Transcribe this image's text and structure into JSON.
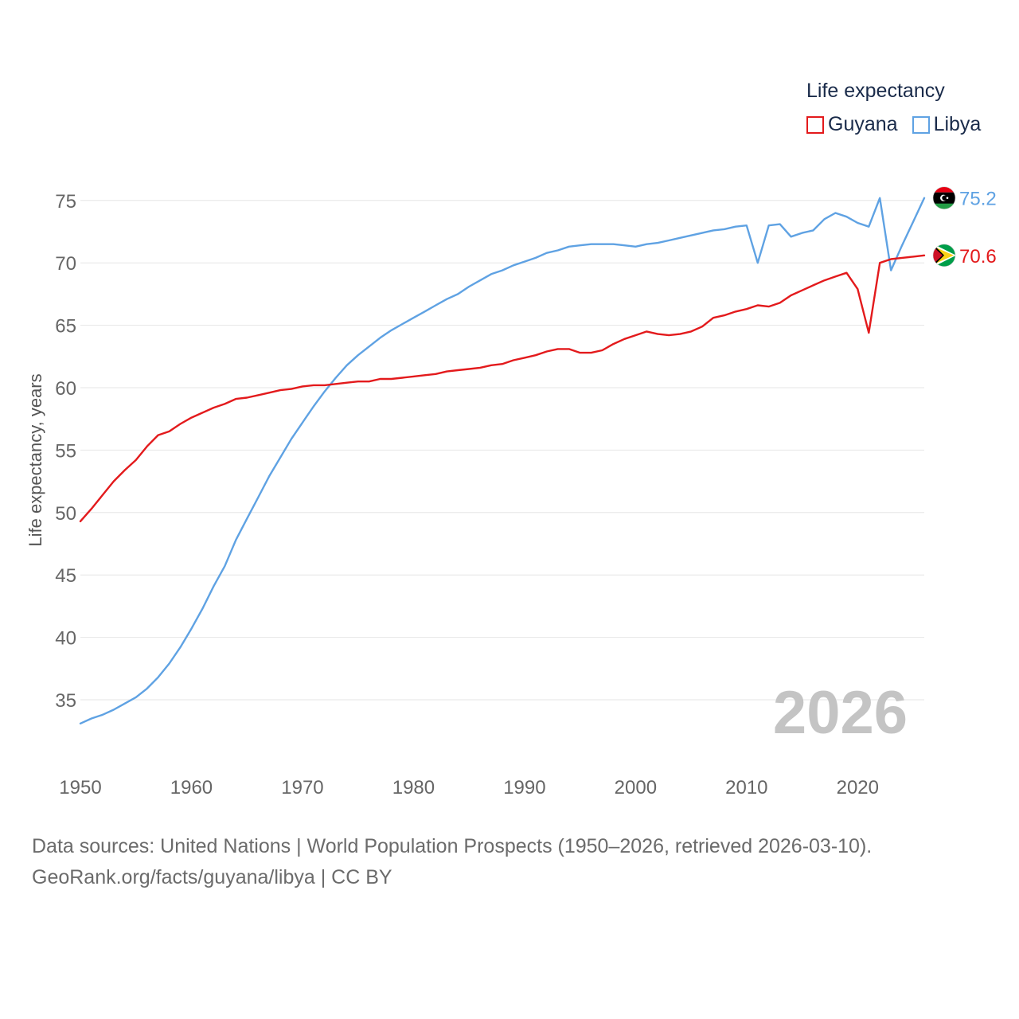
{
  "legend": {
    "title": "Life expectancy"
  },
  "footer": {
    "line1": "Data sources: United Nations | World Population Prospects (1950–2026, retrieved 2026-03-10).",
    "line2": "GeoRank.org/facts/guyana/libya | CC BY"
  },
  "chart_data": {
    "type": "line",
    "title": "Life expectancy",
    "xlabel": "",
    "ylabel": "Life expectancy, years",
    "xlim": [
      1950,
      2026
    ],
    "ylim": [
      31.5,
      76
    ],
    "x_ticks": [
      1950,
      1960,
      1970,
      1980,
      1990,
      2000,
      2010,
      2020
    ],
    "y_ticks": [
      35,
      40,
      45,
      50,
      55,
      60,
      65,
      70,
      75
    ],
    "grid": true,
    "legend_position": "top-right",
    "current_year_label": "2026",
    "x": [
      1950,
      1951,
      1952,
      1953,
      1954,
      1955,
      1956,
      1957,
      1958,
      1959,
      1960,
      1961,
      1962,
      1963,
      1964,
      1965,
      1966,
      1967,
      1968,
      1969,
      1970,
      1971,
      1972,
      1973,
      1974,
      1975,
      1976,
      1977,
      1978,
      1979,
      1980,
      1981,
      1982,
      1983,
      1984,
      1985,
      1986,
      1987,
      1988,
      1989,
      1990,
      1991,
      1992,
      1993,
      1994,
      1995,
      1996,
      1997,
      1998,
      1999,
      2000,
      2001,
      2002,
      2003,
      2004,
      2005,
      2006,
      2007,
      2008,
      2009,
      2010,
      2011,
      2012,
      2013,
      2014,
      2015,
      2016,
      2017,
      2018,
      2019,
      2020,
      2021,
      2022,
      2023,
      2024,
      2025,
      2026
    ],
    "series": [
      {
        "name": "Guyana",
        "color": "#e31a1c",
        "end_label": "70.6",
        "flag": "guyana-flag",
        "values": [
          49.3,
          50.3,
          51.4,
          52.5,
          53.4,
          54.2,
          55.3,
          56.2,
          56.5,
          57.1,
          57.6,
          58.0,
          58.4,
          58.7,
          59.1,
          59.2,
          59.4,
          59.6,
          59.8,
          59.9,
          60.1,
          60.2,
          60.2,
          60.3,
          60.4,
          60.5,
          60.5,
          60.7,
          60.7,
          60.8,
          60.9,
          61.0,
          61.1,
          61.3,
          61.4,
          61.5,
          61.6,
          61.8,
          61.9,
          62.2,
          62.4,
          62.6,
          62.9,
          63.1,
          63.1,
          62.8,
          62.8,
          63.0,
          63.5,
          63.9,
          64.2,
          64.5,
          64.3,
          64.2,
          64.3,
          64.5,
          64.9,
          65.6,
          65.8,
          66.1,
          66.3,
          66.6,
          66.5,
          66.8,
          67.4,
          67.8,
          68.2,
          68.6,
          68.9,
          69.2,
          67.9,
          64.4,
          70.0,
          70.3,
          70.4,
          70.5,
          70.6
        ]
      },
      {
        "name": "Libya",
        "color": "#5fa2e3",
        "end_label": "75.2",
        "flag": "libya-flag",
        "values": [
          33.1,
          33.5,
          33.8,
          34.2,
          34.7,
          35.2,
          35.9,
          36.8,
          37.9,
          39.2,
          40.7,
          42.3,
          44.1,
          45.7,
          47.8,
          49.5,
          51.2,
          52.9,
          54.4,
          55.9,
          57.2,
          58.5,
          59.7,
          60.8,
          61.8,
          62.6,
          63.3,
          64.0,
          64.6,
          65.1,
          65.6,
          66.1,
          66.6,
          67.1,
          67.5,
          68.1,
          68.6,
          69.1,
          69.4,
          69.8,
          70.1,
          70.4,
          70.8,
          71.0,
          71.3,
          71.4,
          71.5,
          71.5,
          71.5,
          71.4,
          71.3,
          71.5,
          71.6,
          71.8,
          72.0,
          72.2,
          72.4,
          72.6,
          72.7,
          72.9,
          73.0,
          70.0,
          73.0,
          73.1,
          72.1,
          72.4,
          72.6,
          73.5,
          74.0,
          73.7,
          73.2,
          72.9,
          75.2,
          69.4,
          71.4,
          73.3,
          75.2
        ]
      }
    ]
  }
}
